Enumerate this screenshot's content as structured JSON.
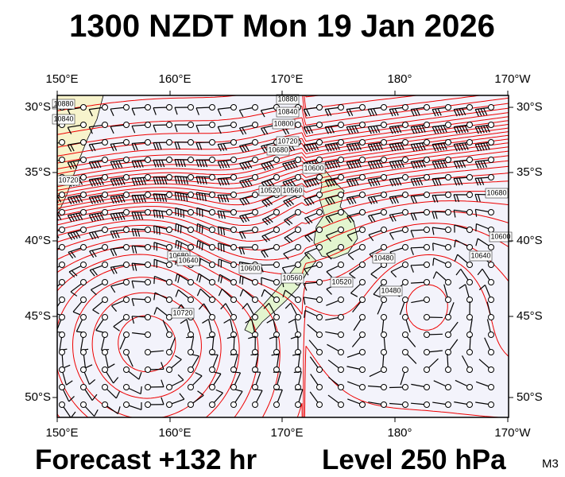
{
  "header": {
    "title": "1300 NZDT Mon 19 Jan 2026"
  },
  "map": {
    "lon_labels": [
      "150°E",
      "160°E",
      "170°E",
      "180°",
      "170°W"
    ],
    "lat_labels": [
      "30°S",
      "35°S",
      "40°S",
      "45°S",
      "50°S"
    ],
    "contour_labels": [
      10880,
      10840,
      10800,
      10720,
      10680,
      10840,
      10880,
      10720,
      10600,
      10520,
      10560,
      10680,
      10640,
      10600,
      10560,
      10520,
      10480,
      10480,
      10720,
      10680,
      10640,
      10600
    ]
  },
  "footer": {
    "forecast": "Forecast +132 hr",
    "level": "Level 250 hPa",
    "model": "M3"
  }
}
